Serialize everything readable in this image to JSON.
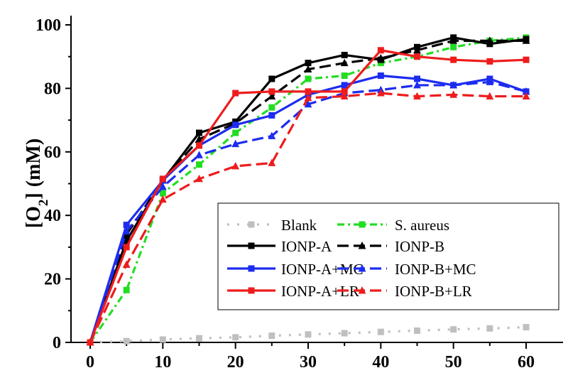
{
  "chart_data": {
    "type": "line",
    "title": "",
    "xlabel": "",
    "ylabel": "(mM)",
    "ylabel_symbol": "[O",
    "ylabel_subscript": "2",
    "ylabel_close": "]",
    "xlim": [
      0,
      60
    ],
    "ylim": [
      0,
      100
    ],
    "xticks": [
      0,
      10,
      20,
      30,
      40,
      50,
      60
    ],
    "yticks": [
      0,
      20,
      40,
      60,
      80,
      100
    ],
    "grid": false,
    "legend_position": "bottom-right",
    "x": [
      0,
      5,
      10,
      15,
      20,
      25,
      30,
      35,
      40,
      45,
      50,
      55,
      60
    ],
    "series": [
      {
        "name": "Blank",
        "color": "#bfbfbf",
        "dash": "dot",
        "marker": "square",
        "values": [
          0,
          0.4,
          0.9,
          1.3,
          1.6,
          2.1,
          2.5,
          2.9,
          3.3,
          3.7,
          4.1,
          4.4,
          4.8
        ]
      },
      {
        "name": "S. aureus",
        "color": "#22dd22",
        "dash": "dashdot",
        "marker": "square",
        "values": [
          0,
          16.5,
          47,
          56,
          66,
          74,
          83,
          84,
          88,
          90,
          93,
          95,
          96
        ]
      },
      {
        "name": "IONP-A",
        "color": "#000000",
        "dash": "solid",
        "marker": "square",
        "values": [
          0,
          32,
          51,
          66,
          69.5,
          83,
          88,
          90.5,
          89,
          93,
          96,
          94,
          95.5
        ]
      },
      {
        "name": "IONP-B",
        "color": "#000000",
        "dash": "dash",
        "marker": "triangle",
        "values": [
          0,
          34,
          51,
          64,
          69,
          77.5,
          86,
          88,
          89.5,
          92,
          95,
          95,
          95
        ]
      },
      {
        "name": "IONP-A+MC",
        "color": "#1c2cf0",
        "dash": "solid",
        "marker": "square",
        "values": [
          0,
          37,
          51,
          62,
          68.5,
          71.5,
          78,
          81,
          84,
          83,
          81,
          83,
          79
        ]
      },
      {
        "name": "IONP-B+MC",
        "color": "#1c2cf0",
        "dash": "dash",
        "marker": "triangle",
        "values": [
          0,
          35,
          49,
          59,
          62.5,
          65,
          75,
          78.5,
          79.5,
          81,
          81,
          82,
          79
        ]
      },
      {
        "name": "IONP-A+LR",
        "color": "#ee1c1c",
        "dash": "solid",
        "marker": "square",
        "values": [
          0,
          30,
          51.5,
          62,
          78.5,
          79,
          79,
          79,
          92,
          90,
          89,
          88.5,
          89
        ]
      },
      {
        "name": "IONP-B+LR",
        "color": "#ee1c1c",
        "dash": "dash",
        "marker": "triangle",
        "values": [
          0,
          24.5,
          45,
          51.5,
          55.5,
          56.5,
          77,
          77.5,
          78.5,
          77.5,
          78,
          77.5,
          77.5
        ]
      }
    ]
  }
}
